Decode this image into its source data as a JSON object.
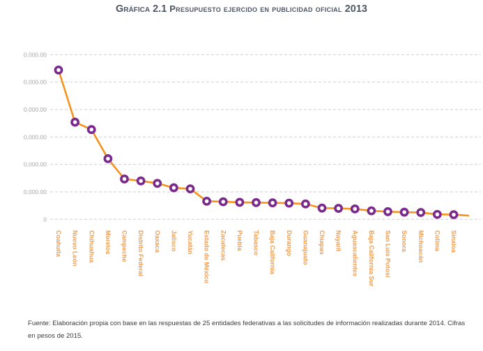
{
  "title": {
    "prefix": "Gráfica 2.1",
    "main": "Presupuesto ejercido en publicidad oficial",
    "year": "2013"
  },
  "chart_data": {
    "type": "line",
    "title": "Gráfica 2.1 Presupuesto ejercido en publicidad oficial 2013",
    "categories": [
      "Coahuila",
      "Nuevo León",
      "Chihuahua",
      "Morelos",
      "Campeche",
      "Distrito Federal",
      "Oaxaca",
      "Jalisco",
      "Yucatán",
      "Estado de México",
      "Zacatecas",
      "Puebla",
      "Tabasco",
      "Baja California",
      "Durango",
      "Guanajuato",
      "Chiapas",
      "Nayarit",
      "Aguascalientes",
      "Baja California Sur",
      "San Luis Potosí",
      "Sonora",
      "Michoacán",
      "Colima",
      "Sinaloa"
    ],
    "values": [
      5.44,
      3.54,
      3.27,
      2.21,
      1.47,
      1.4,
      1.31,
      1.15,
      1.11,
      0.66,
      0.64,
      0.62,
      0.61,
      0.6,
      0.59,
      0.56,
      0.41,
      0.4,
      0.38,
      0.31,
      0.28,
      0.26,
      0.25,
      0.18,
      0.17
    ],
    "y_tick_labels": [
      "0,000.00",
      "0,000.00",
      "0,000.00",
      "0,000.00",
      "0,000.00",
      "0,000.00",
      "0"
    ],
    "ylim": [
      0,
      6
    ],
    "grid": "horizontal-dashed",
    "legend": "none",
    "y_axis_note": "tick labels truncated in source image; values estimated in gridline units",
    "colors": {
      "line": "#F6921E",
      "marker_ring": "#7A2A8C",
      "marker_fill": "#FFFFFF",
      "x_labels": "#F09C4F",
      "y_labels": "#A6A6A6",
      "gridline": "#CFCFCF",
      "title": "#4C5664"
    }
  },
  "footer": {
    "source": "Fuente: Elaboración propia con base en las respuestas de 25 entidades federativas a las solicitudes de información realizadas durante 2014. Cifras en pesos de 2015."
  }
}
